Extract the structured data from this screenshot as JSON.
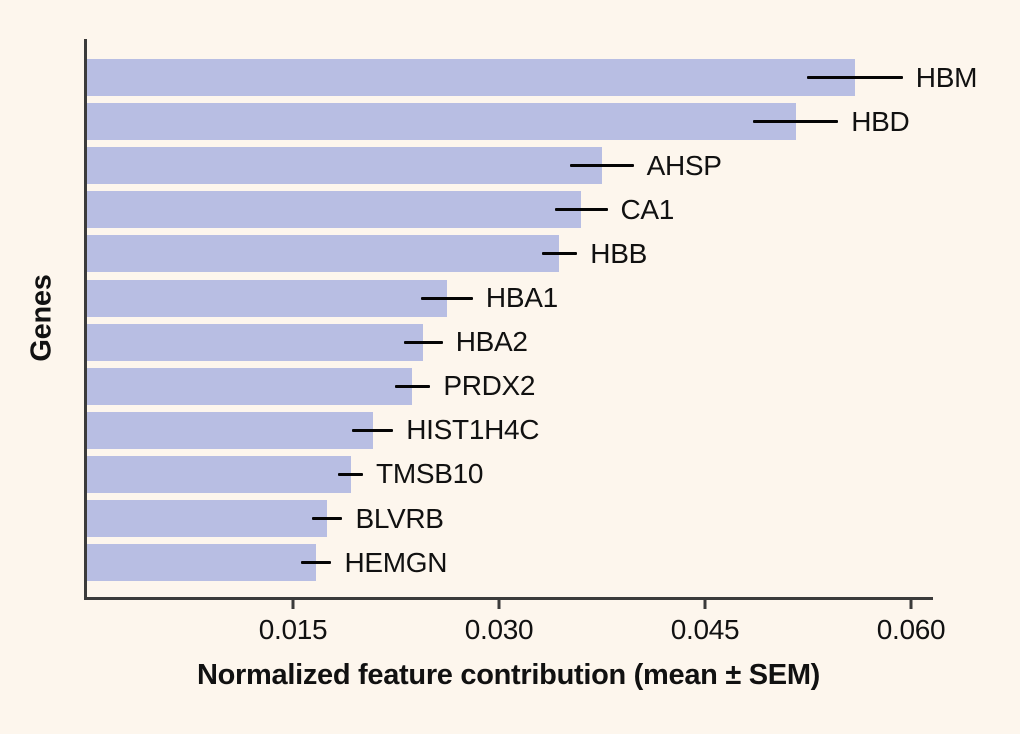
{
  "chart_data": {
    "type": "bar",
    "orientation": "horizontal",
    "categories": [
      "HBM",
      "HBD",
      "AHSP",
      "CA1",
      "HBB",
      "HBA1",
      "HBA2",
      "PRDX2",
      "HIST1H4C",
      "TMSB10",
      "BLVRB",
      "HEMGN"
    ],
    "values": [
      0.0559,
      0.0516,
      0.0375,
      0.036,
      0.0344,
      0.0262,
      0.0245,
      0.0237,
      0.0208,
      0.0192,
      0.0175,
      0.0167
    ],
    "sem": [
      0.0035,
      0.0031,
      0.0023,
      0.0019,
      0.0013,
      0.0019,
      0.0014,
      0.0013,
      0.0015,
      0.0009,
      0.0011,
      0.0011
    ],
    "title": "",
    "xlabel": "Normalized feature contribution (mean ± SEM)",
    "ylabel": "Genes",
    "x_ticks": [
      0.015,
      0.03,
      0.045,
      0.06
    ],
    "x_tick_labels": [
      "0.015",
      "0.030",
      "0.045",
      "0.060"
    ],
    "xlim": [
      0,
      0.0616
    ],
    "grid": false,
    "legend": false,
    "error_bars": true,
    "bar_color": "#b8bee3",
    "error_bar_color": "#050505",
    "axis_color": "#3b3b3b",
    "background_color": "#fdf6ed"
  }
}
